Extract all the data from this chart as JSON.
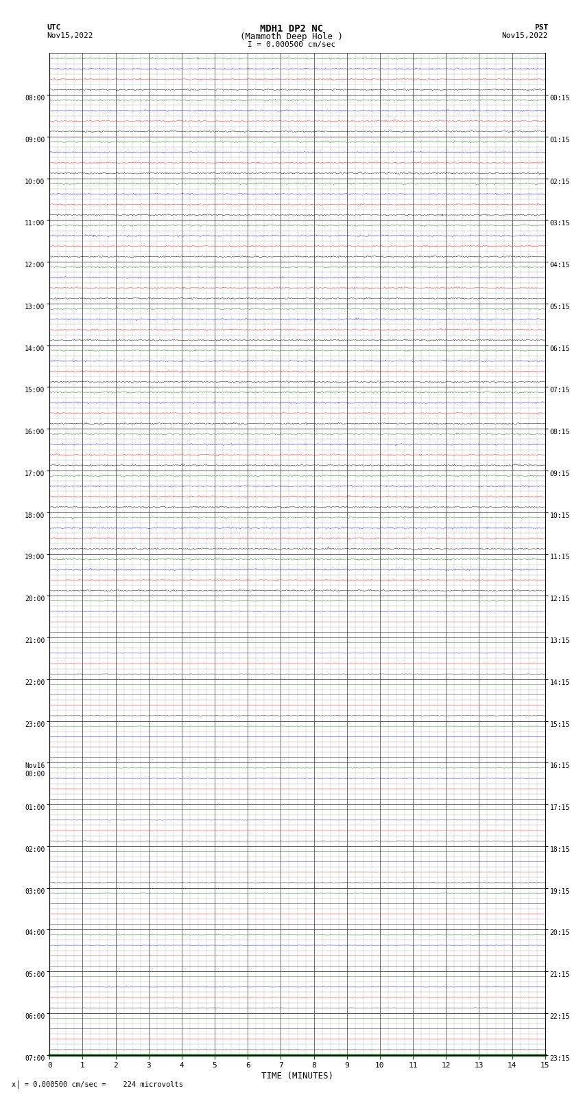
{
  "title_line1": "MDH1 DP2 NC",
  "title_line2": "(Mammoth Deep Hole )",
  "scale_label": "I = 0.000500 cm/sec",
  "utc_label": "UTC",
  "utc_date": "Nov15,2022",
  "pst_label": "PST",
  "pst_date": "Nov15,2022",
  "xlabel": "TIME (MINUTES)",
  "bottom_note": "= 0.000500 cm/sec =    224 microvolts",
  "x_min": 0,
  "x_max": 15,
  "x_ticks": [
    0,
    1,
    2,
    3,
    4,
    5,
    6,
    7,
    8,
    9,
    10,
    11,
    12,
    13,
    14,
    15
  ],
  "num_rows": 24,
  "bg_color": "#ffffff",
  "major_grid_color": "#555555",
  "minor_grid_color": "#aaaaaa",
  "trace_colors": [
    "#000000",
    "#ff0000",
    "#0000ff",
    "#008000"
  ],
  "utc_hours": [
    "08:00",
    "09:00",
    "10:00",
    "11:00",
    "12:00",
    "13:00",
    "14:00",
    "15:00",
    "16:00",
    "17:00",
    "18:00",
    "19:00",
    "20:00",
    "21:00",
    "22:00",
    "23:00",
    "00:00",
    "01:00",
    "02:00",
    "03:00",
    "04:00",
    "05:00",
    "06:00",
    "07:00"
  ],
  "utc_hour_special": 16,
  "pst_hours": [
    "00:15",
    "01:15",
    "02:15",
    "03:15",
    "04:15",
    "05:15",
    "06:15",
    "07:15",
    "08:15",
    "09:15",
    "10:15",
    "11:15",
    "12:15",
    "13:15",
    "14:15",
    "15:15",
    "16:15",
    "17:15",
    "18:15",
    "19:15",
    "20:15",
    "21:15",
    "22:15",
    "23:15"
  ],
  "sub_traces_per_row": 4,
  "noise_scale_quiet": 0.012,
  "noise_scale_active": 0.055,
  "active_rows": [
    11,
    12,
    13,
    14,
    15,
    16,
    17,
    18,
    19,
    20,
    21,
    22,
    23
  ],
  "fig_width": 8.5,
  "fig_height": 16.13,
  "dpi": 100
}
